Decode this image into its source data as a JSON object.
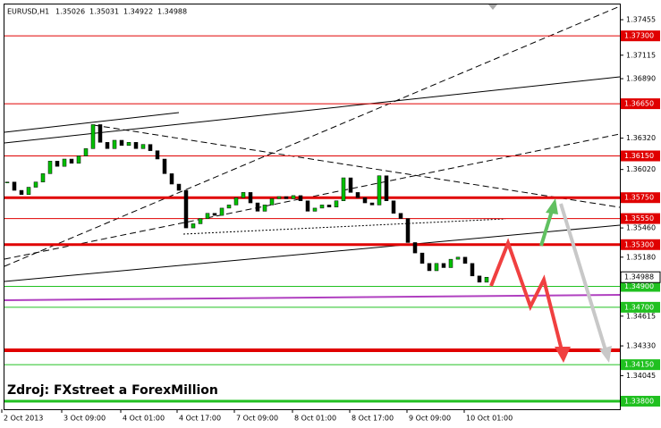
{
  "chart_data": {
    "type": "candlestick",
    "symbol": "EURUSD,H1",
    "ohlc": [
      1.35026,
      1.35031,
      1.34922,
      1.34988
    ],
    "caption": "Zdroj: FXstreet a ForexMillion",
    "close": [
      1.359,
      1.3582,
      1.3578,
      1.3585,
      1.359,
      1.3598,
      1.361,
      1.3605,
      1.3612,
      1.3608,
      1.3615,
      1.3622,
      1.3645,
      1.3628,
      1.3622,
      1.363,
      1.3625,
      1.3628,
      1.3622,
      1.3626,
      1.362,
      1.3612,
      1.3598,
      1.3588,
      1.3582,
      1.3546,
      1.355,
      1.3555,
      1.356,
      1.3558,
      1.3565,
      1.3568,
      1.3575,
      1.358,
      1.357,
      1.3562,
      1.3568,
      1.3574,
      1.3576,
      1.3574,
      1.3577,
      1.3572,
      1.3562,
      1.3565,
      1.3568,
      1.3566,
      1.3572,
      1.3594,
      1.358,
      1.3575,
      1.357,
      1.3568,
      1.3596,
      1.3572,
      1.356,
      1.3555,
      1.3532,
      1.3522,
      1.3512,
      1.3505,
      1.3512,
      1.3508,
      1.3516,
      1.3518,
      1.3512,
      1.35,
      1.3494,
      1.34988
    ],
    "up_color": "#00c000",
    "down_color": "#000000",
    "x_labels": [
      "2 Oct 2013",
      "3 Oct 09:00",
      "4 Oct 01:00",
      "4 Oct 17:00",
      "7 Oct 09:00",
      "8 Oct 01:00",
      "8 Oct 17:00",
      "9 Oct 09:00",
      "10 Oct 01:00"
    ],
    "ylim": [
      1.33723,
      1.37601
    ],
    "yticks": [
      1.37455,
      1.37115,
      {
        "value": 1.3689,
        "label": "1.36890"
      },
      {
        "value": 1.3632,
        "label": "1.36320"
      },
      {
        "value": 1.3602,
        "label": "1.36020"
      },
      {
        "value": 1.3546,
        "label": "1.35460"
      },
      {
        "value": 1.3518,
        "label": "1.35180"
      },
      1.34615,
      {
        "value": 1.3433,
        "label": "1.34330"
      },
      1.34045
    ],
    "levels": [
      {
        "value": 1.373,
        "label": "1.37300",
        "color": "#e00000",
        "width": 1
      },
      {
        "value": 1.3665,
        "label": "1.36650",
        "color": "#e00000",
        "width": 1
      },
      {
        "value": 1.3615,
        "label": "1.36150",
        "color": "#e00000",
        "width": 1
      },
      {
        "value": 1.3575,
        "label": "1.35750",
        "color": "#e00000",
        "width": 3
      },
      {
        "value": 1.3555,
        "label": "1.35550",
        "color": "#e00000",
        "width": 1
      },
      {
        "value": 1.353,
        "label": "1.35300",
        "color": "#e00000",
        "width": 3
      },
      {
        "value": 1.349,
        "label": "1.34900",
        "color": "#20c020",
        "width": 1
      },
      {
        "value": 1.347,
        "label": "1.34700",
        "color": "#20c020",
        "width": 1
      },
      {
        "value": 1.34288,
        "color": "#e00000",
        "width": 4
      },
      {
        "value": 1.3415,
        "label": "1.34150",
        "color": "#20c020",
        "width": 1
      },
      {
        "value": 1.338,
        "label": "1.33800",
        "color": "#20c020",
        "width": 3
      }
    ],
    "last_price": 1.34988
  }
}
